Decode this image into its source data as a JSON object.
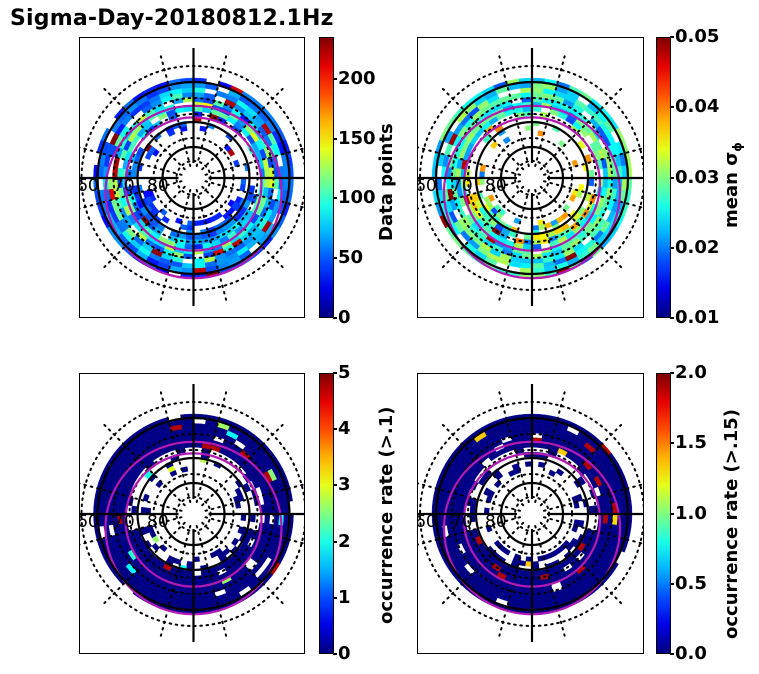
{
  "figure": {
    "title": "Sigma-Day-20180812.1Hz"
  },
  "chart_data": [
    {
      "type": "heatmap",
      "projection": "polar",
      "title": "",
      "lat_labels": [
        "60",
        "70",
        "80"
      ],
      "colorbar": {
        "label": "Data points",
        "label_sub": "",
        "ticks": [
          "0",
          "50",
          "100",
          "150",
          "200"
        ],
        "tick_values": [
          0,
          50,
          100,
          150,
          200
        ],
        "range": [
          0,
          235
        ],
        "colormap": "jet"
      },
      "seed": 11,
      "profile": "counts",
      "grid": true
    },
    {
      "type": "heatmap",
      "projection": "polar",
      "title": "",
      "lat_labels": [
        "60",
        "70",
        "80"
      ],
      "colorbar": {
        "label": "mean σ",
        "label_sub": "ϕ",
        "ticks": [
          "0.01",
          "0.02",
          "0.03",
          "0.04",
          "0.05"
        ],
        "tick_values": [
          0.01,
          0.02,
          0.03,
          0.04,
          0.05
        ],
        "range": [
          0.01,
          0.05
        ],
        "colormap": "jet"
      },
      "seed": 23,
      "profile": "sigma",
      "grid": true
    },
    {
      "type": "heatmap",
      "projection": "polar",
      "title": "",
      "lat_labels": [
        "60",
        "70",
        "80"
      ],
      "colorbar": {
        "label": "occurrence rate (>.1)",
        "label_sub": "",
        "ticks": [
          "0",
          "1",
          "2",
          "3",
          "4",
          "5"
        ],
        "tick_values": [
          0,
          1,
          2,
          3,
          4,
          5
        ],
        "range": [
          0,
          5
        ],
        "colormap": "jet"
      },
      "seed": 37,
      "profile": "rate1",
      "grid": true
    },
    {
      "type": "heatmap",
      "projection": "polar",
      "title": "",
      "lat_labels": [
        "60",
        "70",
        "80"
      ],
      "colorbar": {
        "label": "occurrence rate (>.15)",
        "label_sub": "",
        "ticks": [
          "0.0",
          "0.5",
          "1.0",
          "1.5",
          "2.0"
        ],
        "tick_values": [
          0.0,
          0.5,
          1.0,
          1.5,
          2.0
        ],
        "range": [
          0,
          2
        ],
        "colormap": "jet"
      },
      "seed": 41,
      "profile": "rate2",
      "grid": true
    }
  ]
}
